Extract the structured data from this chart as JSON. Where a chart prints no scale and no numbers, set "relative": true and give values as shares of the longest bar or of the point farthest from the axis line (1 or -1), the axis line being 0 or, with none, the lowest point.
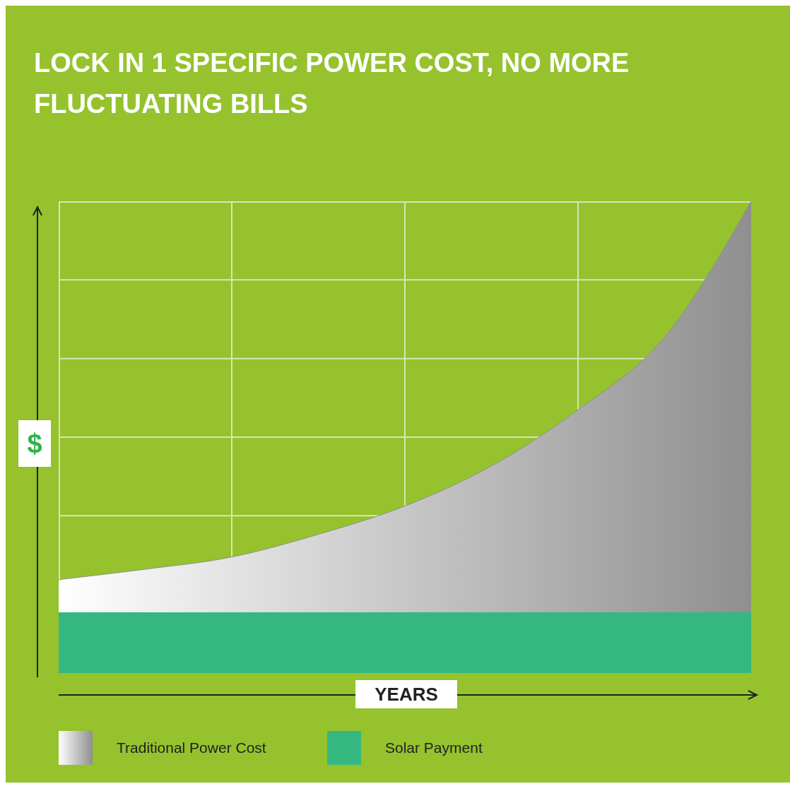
{
  "chart_data": {
    "type": "area",
    "title": "LOCK IN 1 SPECIFIC POWER COST, NO MORE FLUCTUATING BILLS",
    "xlabel": "YEARS",
    "ylabel": "$",
    "relative": true,
    "grid": true,
    "legend": "bottom left",
    "categories": [
      null,
      null,
      null,
      null,
      null,
      null,
      null,
      null,
      null
    ],
    "series": [
      {
        "name": "Traditional Power Cost",
        "color": "#8f8f8f",
        "values": [
          0.198,
          0.22,
          0.246,
          0.294,
          0.354,
          0.439,
          0.558,
          0.712,
          1
        ]
      },
      {
        "name": "Solar Payment",
        "color": "#35b87f",
        "values": [
          0.128,
          0.128,
          0.128,
          0.128,
          0.128,
          0.128,
          0.128,
          0.128,
          0.128
        ]
      }
    ]
  }
}
